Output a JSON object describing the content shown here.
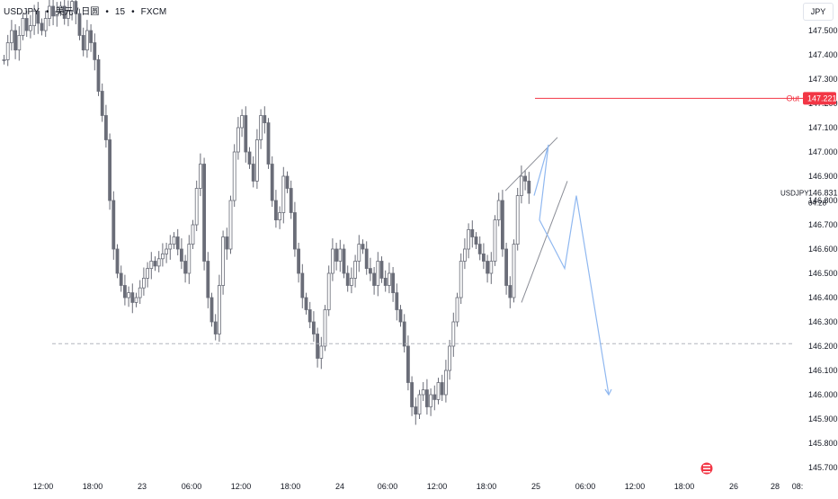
{
  "header": {
    "symbol": "USDJPY",
    "sep1": "•",
    "name": "美元 / 日圆",
    "sep2": "•",
    "interval": "15",
    "sep3": "•",
    "source": "FXCM"
  },
  "currency_button": "JPY",
  "price_badge": {
    "symbol": "USDJPY",
    "price": "146.831",
    "countdown": "04:28"
  },
  "out_label": {
    "text": "Out",
    "price": "147.221"
  },
  "colors": {
    "candle": "#6a6d78",
    "out_line": "#f23645",
    "projection": "#90b8f0",
    "wedge": "#8a8d96",
    "dashed": "#b2b5be",
    "grid_text": "#131722"
  },
  "logo_icon": "economic-calendar-flag-icon",
  "chart_data": {
    "type": "candlestick",
    "ylim": [
      145.7,
      147.6
    ],
    "y_ticks": [
      "147.500",
      "147.400",
      "147.300",
      "147.200",
      "147.100",
      "147.000",
      "146.900",
      "146.800",
      "146.700",
      "146.600",
      "146.500",
      "146.400",
      "146.300",
      "146.200",
      "146.100",
      "146.000",
      "145.900",
      "145.800",
      "145.700"
    ],
    "x_ticks": [
      "12:00",
      "18:00",
      "23",
      "06:00",
      "12:00",
      "18:00",
      "24",
      "06:00",
      "12:00",
      "18:00",
      "25",
      "06:00",
      "12:00",
      "18:00",
      "26",
      "28",
      "08:"
    ],
    "candle_closes": [
      147.38,
      147.45,
      147.5,
      147.42,
      147.48,
      147.55,
      147.5,
      147.52,
      147.58,
      147.53,
      147.5,
      147.55,
      147.6,
      147.56,
      147.58,
      147.6,
      147.55,
      147.58,
      147.62,
      147.57,
      147.48,
      147.42,
      147.5,
      147.45,
      147.38,
      147.25,
      147.15,
      147.05,
      146.8,
      146.6,
      146.5,
      146.45,
      146.4,
      146.42,
      146.38,
      146.4,
      146.44,
      146.48,
      146.52,
      146.55,
      146.53,
      146.56,
      146.58,
      146.6,
      146.62,
      146.65,
      146.6,
      146.55,
      146.5,
      146.62,
      146.7,
      146.85,
      146.95,
      146.55,
      146.4,
      146.3,
      146.25,
      146.45,
      146.65,
      146.6,
      146.8,
      147.0,
      147.1,
      147.15,
      147.0,
      146.95,
      146.88,
      147.05,
      147.15,
      147.12,
      146.95,
      146.8,
      146.72,
      146.75,
      146.9,
      146.85,
      146.75,
      146.6,
      146.5,
      146.4,
      146.35,
      146.3,
      146.25,
      146.15,
      146.2,
      146.35,
      146.5,
      146.6,
      146.55,
      146.6,
      146.5,
      146.45,
      146.48,
      146.55,
      146.62,
      146.6,
      146.52,
      146.5,
      146.45,
      146.55,
      146.48,
      146.45,
      146.5,
      146.42,
      146.35,
      146.3,
      146.2,
      146.05,
      145.95,
      145.92,
      146.0,
      146.02,
      145.95,
      146.0,
      145.98,
      146.05,
      146.0,
      146.1,
      146.2,
      146.3,
      146.4,
      146.55,
      146.6,
      146.68,
      146.65,
      146.62,
      146.58,
      146.55,
      146.5,
      146.55,
      146.72,
      146.8,
      146.6,
      146.45,
      146.4,
      146.62,
      146.82,
      146.9,
      146.88,
      146.83
    ],
    "levels": {
      "out": 147.221,
      "dashed": 146.21,
      "last": 146.831
    },
    "wedge": {
      "upper": [
        [
          146.84,
          147.06
        ]
      ],
      "lower": [
        [
          146.38,
          146.88
        ]
      ]
    },
    "projection_path_prices": [
      146.82,
      147.03,
      146.72,
      146.52,
      146.82,
      146.0
    ]
  }
}
